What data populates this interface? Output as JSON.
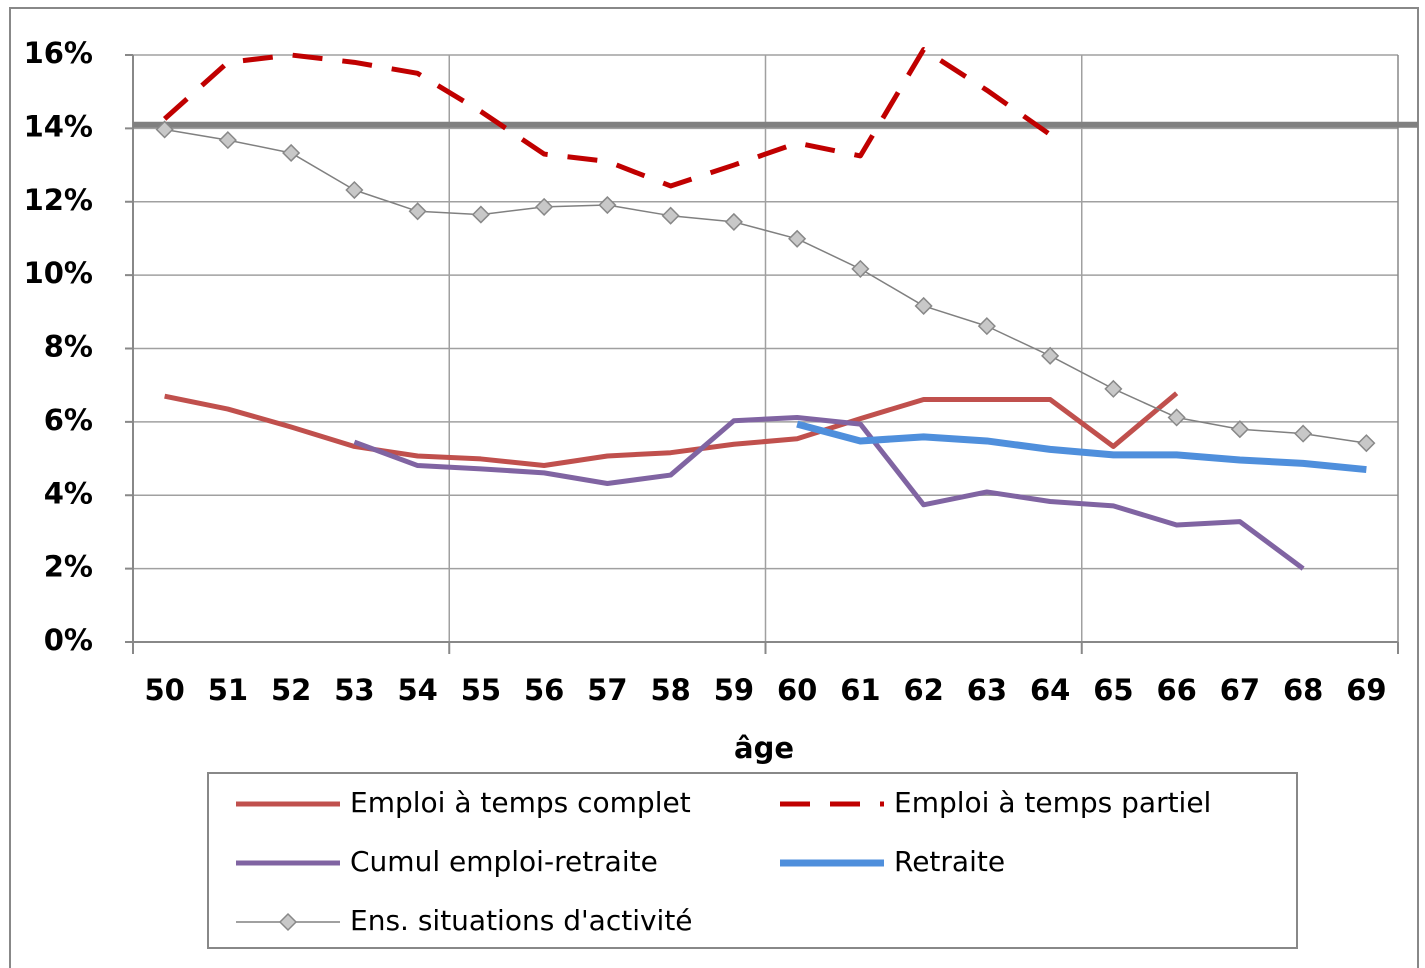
{
  "chart_data": {
    "type": "line",
    "x_label": "âge",
    "categories": [
      "50",
      "51",
      "52",
      "53",
      "54",
      "55",
      "56",
      "57",
      "58",
      "59",
      "60",
      "61",
      "62",
      "63",
      "64",
      "65",
      "66",
      "67",
      "68",
      "69"
    ],
    "ylim": [
      0,
      16
    ],
    "yticks": [
      {
        "value": 0,
        "label": "0%"
      },
      {
        "value": 2,
        "label": "2%"
      },
      {
        "value": 4,
        "label": "4%"
      },
      {
        "value": 6,
        "label": "6%"
      },
      {
        "value": 8,
        "label": "8%"
      },
      {
        "value": 10,
        "label": "10%"
      },
      {
        "value": 12,
        "label": "12%"
      },
      {
        "value": 14,
        "label": "14%"
      },
      {
        "value": 16,
        "label": "16%"
      }
    ],
    "grid": true,
    "reference_line": {
      "value": 14.1,
      "color": "#808080"
    },
    "series": [
      {
        "name": "Emploi à temps complet",
        "color": "#c0504d",
        "width": 5,
        "values": [
          6.7,
          6.35,
          5.86,
          5.33,
          5.07,
          4.99,
          4.81,
          5.07,
          5.16,
          5.39,
          5.54,
          6.09,
          6.61,
          6.61,
          6.61,
          5.33,
          6.78,
          null,
          null,
          null
        ]
      },
      {
        "name": "Emploi à temps partiel",
        "color": "#c00000",
        "width": 5,
        "dash": true,
        "values": [
          14.26,
          15.8,
          16.0,
          15.8,
          15.5,
          14.46,
          13.3,
          13.1,
          12.43,
          13.0,
          13.6,
          13.25,
          16.15,
          15.04,
          13.83,
          null,
          null,
          null,
          null,
          null
        ]
      },
      {
        "name": "Cumul emploi-retraite",
        "color": "#8064a2",
        "width": 5,
        "values": [
          null,
          null,
          null,
          5.45,
          4.81,
          4.72,
          4.61,
          4.32,
          4.55,
          6.03,
          6.12,
          5.94,
          3.74,
          4.09,
          3.83,
          3.71,
          3.19,
          3.28,
          2.0,
          null
        ]
      },
      {
        "name": "Retraite",
        "color": "#4f8fdc",
        "width": 7,
        "values": [
          null,
          null,
          null,
          null,
          null,
          null,
          null,
          null,
          null,
          null,
          5.94,
          5.48,
          5.59,
          5.48,
          5.25,
          5.1,
          5.1,
          4.96,
          4.87,
          4.7
        ]
      },
      {
        "name": "Ens. situations d'activité",
        "color": "#808080",
        "width": 1.5,
        "marker": "diamond",
        "values": [
          13.97,
          13.68,
          13.33,
          12.32,
          11.74,
          11.65,
          11.86,
          11.91,
          11.62,
          11.45,
          10.99,
          10.17,
          9.16,
          8.61,
          7.8,
          6.9,
          6.12,
          5.8,
          5.68,
          5.42
        ]
      }
    ]
  }
}
